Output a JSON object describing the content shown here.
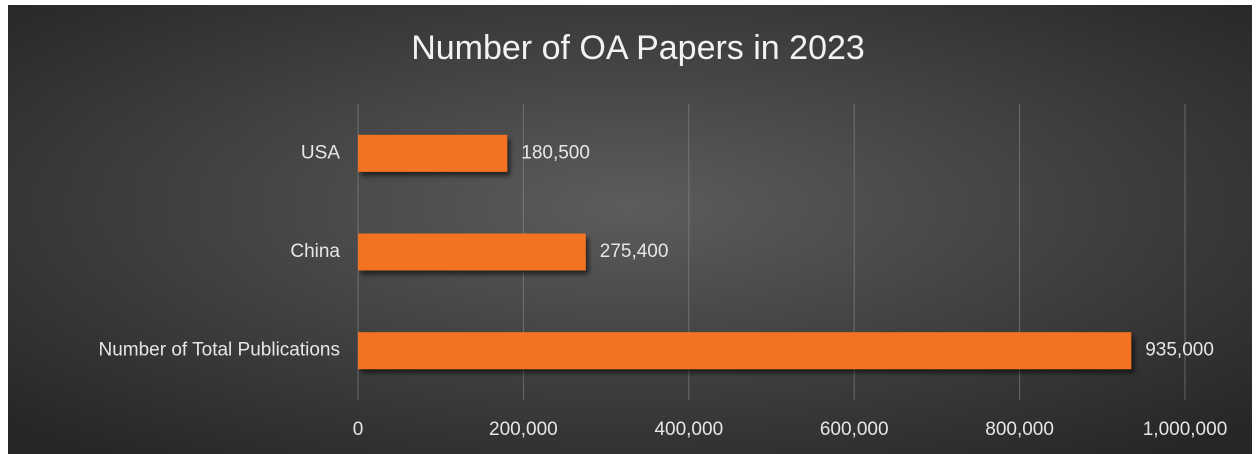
{
  "chart_data": {
    "type": "bar",
    "orientation": "horizontal",
    "title": "Number of OA Papers in 2023",
    "categories": [
      "USA",
      "China",
      "Number of Total Publications"
    ],
    "values": [
      180500,
      275400,
      935000
    ],
    "value_labels": [
      "180,500",
      "275,400",
      "935,000"
    ],
    "color": "#f47320",
    "xlim": [
      0,
      1000000
    ],
    "xticks": [
      0,
      {
        "value": 200000,
        "label": "200,000"
      },
      {
        "value": 400000,
        "label": "400,000"
      },
      {
        "value": 600000,
        "label": "600,000"
      },
      {
        "value": 800000,
        "label": "800,000"
      },
      {
        "value": 1000000,
        "label": "1,000,000"
      }
    ],
    "grid": true
  }
}
